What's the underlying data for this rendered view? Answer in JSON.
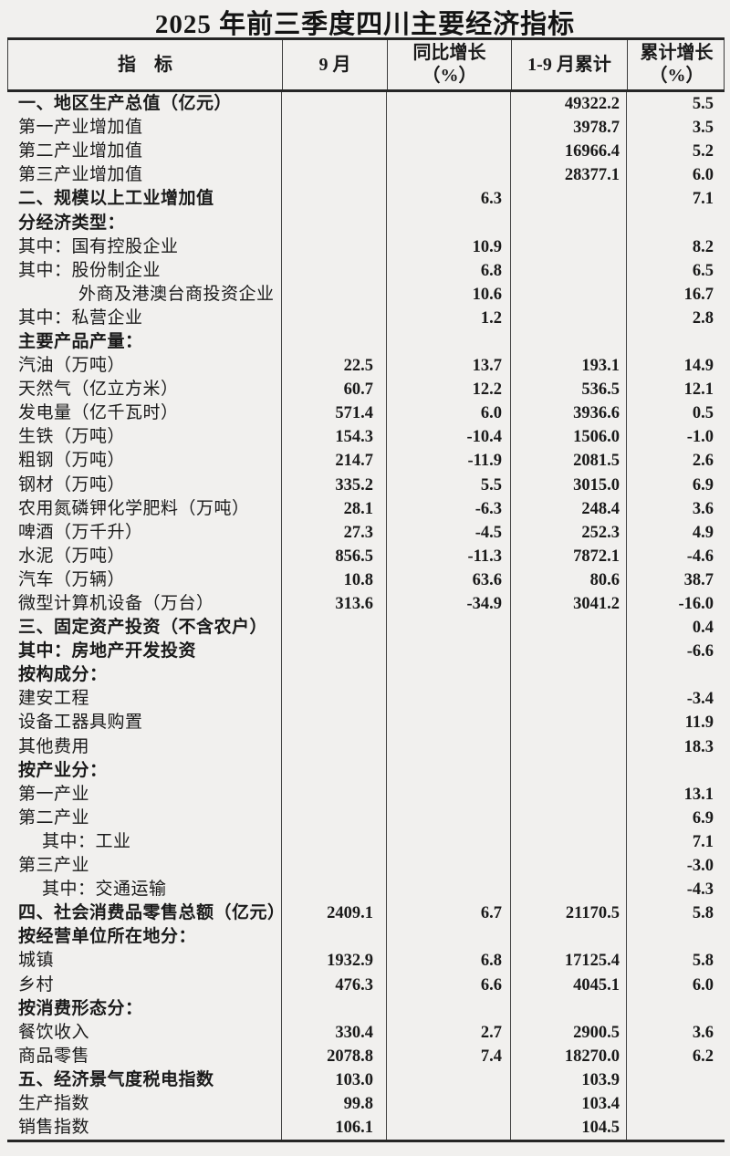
{
  "title": "2025 年前三季度四川主要经济指标",
  "colors": {
    "background": "#f1f0ee",
    "text": "#1a1a1a",
    "border": "#2b2b2b"
  },
  "table": {
    "headers": [
      {
        "line1": "指　标",
        "line2": ""
      },
      {
        "line1": "9 月",
        "line2": ""
      },
      {
        "line1": "同比增长",
        "line2": "（%）"
      },
      {
        "line1": "1-9 月累计",
        "line2": ""
      },
      {
        "line1": "累计增长",
        "line2": "（%）"
      }
    ],
    "rows": [
      {
        "label": "一、地区生产总值（亿元）",
        "bold": true,
        "indent": 0,
        "m9": "",
        "yoy": "",
        "cum": "49322.2",
        "cumGrowth": "5.5"
      },
      {
        "label": "第一产业增加值",
        "bold": false,
        "indent": 0,
        "m9": "",
        "yoy": "",
        "cum": "3978.7",
        "cumGrowth": "3.5"
      },
      {
        "label": "第二产业增加值",
        "bold": false,
        "indent": 0,
        "m9": "",
        "yoy": "",
        "cum": "16966.4",
        "cumGrowth": "5.2"
      },
      {
        "label": "第三产业增加值",
        "bold": false,
        "indent": 0,
        "m9": "",
        "yoy": "",
        "cum": "28377.1",
        "cumGrowth": "6.0"
      },
      {
        "label": "二、规模以上工业增加值",
        "bold": true,
        "indent": 0,
        "m9": "",
        "yoy": "6.3",
        "cum": "",
        "cumGrowth": "7.1"
      },
      {
        "label": "分经济类型：",
        "bold": true,
        "indent": 0,
        "m9": "",
        "yoy": "",
        "cum": "",
        "cumGrowth": ""
      },
      {
        "label": "其中：国有控股企业",
        "bold": false,
        "indent": 0,
        "m9": "",
        "yoy": "10.9",
        "cum": "",
        "cumGrowth": "8.2"
      },
      {
        "label": "其中：股份制企业",
        "bold": false,
        "indent": 0,
        "m9": "",
        "yoy": "6.8",
        "cum": "",
        "cumGrowth": "6.5"
      },
      {
        "label": "外商及港澳台商投资企业",
        "bold": false,
        "indent": 2,
        "m9": "",
        "yoy": "10.6",
        "cum": "",
        "cumGrowth": "16.7"
      },
      {
        "label": "其中：私营企业",
        "bold": false,
        "indent": 0,
        "m9": "",
        "yoy": "1.2",
        "cum": "",
        "cumGrowth": "2.8"
      },
      {
        "label": "主要产品产量：",
        "bold": true,
        "indent": 0,
        "m9": "",
        "yoy": "",
        "cum": "",
        "cumGrowth": ""
      },
      {
        "label": "汽油（万吨）",
        "bold": false,
        "indent": 0,
        "m9": "22.5",
        "yoy": "13.7",
        "cum": "193.1",
        "cumGrowth": "14.9"
      },
      {
        "label": "天然气（亿立方米）",
        "bold": false,
        "indent": 0,
        "m9": "60.7",
        "yoy": "12.2",
        "cum": "536.5",
        "cumGrowth": "12.1"
      },
      {
        "label": "发电量（亿千瓦时）",
        "bold": false,
        "indent": 0,
        "m9": "571.4",
        "yoy": "6.0",
        "cum": "3936.6",
        "cumGrowth": "0.5"
      },
      {
        "label": "生铁（万吨）",
        "bold": false,
        "indent": 0,
        "m9": "154.3",
        "yoy": "-10.4",
        "cum": "1506.0",
        "cumGrowth": "-1.0"
      },
      {
        "label": "粗钢（万吨）",
        "bold": false,
        "indent": 0,
        "m9": "214.7",
        "yoy": "-11.9",
        "cum": "2081.5",
        "cumGrowth": "2.6"
      },
      {
        "label": "钢材（万吨）",
        "bold": false,
        "indent": 0,
        "m9": "335.2",
        "yoy": "5.5",
        "cum": "3015.0",
        "cumGrowth": "6.9"
      },
      {
        "label": "农用氮磷钾化学肥料（万吨）",
        "bold": false,
        "indent": 0,
        "m9": "28.1",
        "yoy": "-6.3",
        "cum": "248.4",
        "cumGrowth": "3.6"
      },
      {
        "label": "啤酒（万千升）",
        "bold": false,
        "indent": 0,
        "m9": "27.3",
        "yoy": "-4.5",
        "cum": "252.3",
        "cumGrowth": "4.9"
      },
      {
        "label": "水泥（万吨）",
        "bold": false,
        "indent": 0,
        "m9": "856.5",
        "yoy": "-11.3",
        "cum": "7872.1",
        "cumGrowth": "-4.6"
      },
      {
        "label": "汽车（万辆）",
        "bold": false,
        "indent": 0,
        "m9": "10.8",
        "yoy": "63.6",
        "cum": "80.6",
        "cumGrowth": "38.7"
      },
      {
        "label": "微型计算机设备（万台）",
        "bold": false,
        "indent": 0,
        "m9": "313.6",
        "yoy": "-34.9",
        "cum": "3041.2",
        "cumGrowth": "-16.0"
      },
      {
        "label": "三、固定资产投资（不含农户）",
        "bold": true,
        "indent": 0,
        "m9": "",
        "yoy": "",
        "cum": "",
        "cumGrowth": "0.4"
      },
      {
        "label": "其中：房地产开发投资",
        "bold": true,
        "indent": 0,
        "m9": "",
        "yoy": "",
        "cum": "",
        "cumGrowth": "-6.6"
      },
      {
        "label": "按构成分：",
        "bold": true,
        "indent": 0,
        "m9": "",
        "yoy": "",
        "cum": "",
        "cumGrowth": ""
      },
      {
        "label": "建安工程",
        "bold": false,
        "indent": 0,
        "m9": "",
        "yoy": "",
        "cum": "",
        "cumGrowth": "-3.4"
      },
      {
        "label": "设备工器具购置",
        "bold": false,
        "indent": 0,
        "m9": "",
        "yoy": "",
        "cum": "",
        "cumGrowth": "11.9"
      },
      {
        "label": "其他费用",
        "bold": false,
        "indent": 0,
        "m9": "",
        "yoy": "",
        "cum": "",
        "cumGrowth": "18.3"
      },
      {
        "label": "按产业分：",
        "bold": true,
        "indent": 0,
        "m9": "",
        "yoy": "",
        "cum": "",
        "cumGrowth": ""
      },
      {
        "label": "第一产业",
        "bold": false,
        "indent": 0,
        "m9": "",
        "yoy": "",
        "cum": "",
        "cumGrowth": "13.1"
      },
      {
        "label": "第二产业",
        "bold": false,
        "indent": 0,
        "m9": "",
        "yoy": "",
        "cum": "",
        "cumGrowth": "6.9"
      },
      {
        "label": "其中：工业",
        "bold": false,
        "indent": 1,
        "m9": "",
        "yoy": "",
        "cum": "",
        "cumGrowth": "7.1"
      },
      {
        "label": "第三产业",
        "bold": false,
        "indent": 0,
        "m9": "",
        "yoy": "",
        "cum": "",
        "cumGrowth": "-3.0"
      },
      {
        "label": "其中：交通运输",
        "bold": false,
        "indent": 1,
        "m9": "",
        "yoy": "",
        "cum": "",
        "cumGrowth": "-4.3"
      },
      {
        "label": "四、社会消费品零售总额（亿元）",
        "bold": true,
        "indent": 0,
        "m9": "2409.1",
        "yoy": "6.7",
        "cum": "21170.5",
        "cumGrowth": "5.8"
      },
      {
        "label": "按经营单位所在地分：",
        "bold": true,
        "indent": 0,
        "m9": "",
        "yoy": "",
        "cum": "",
        "cumGrowth": ""
      },
      {
        "label": "城镇",
        "bold": false,
        "indent": 0,
        "m9": "1932.9",
        "yoy": "6.8",
        "cum": "17125.4",
        "cumGrowth": "5.8"
      },
      {
        "label": "乡村",
        "bold": false,
        "indent": 0,
        "m9": "476.3",
        "yoy": "6.6",
        "cum": "4045.1",
        "cumGrowth": "6.0"
      },
      {
        "label": "按消费形态分：",
        "bold": true,
        "indent": 0,
        "m9": "",
        "yoy": "",
        "cum": "",
        "cumGrowth": ""
      },
      {
        "label": "餐饮收入",
        "bold": false,
        "indent": 0,
        "m9": "330.4",
        "yoy": "2.7",
        "cum": "2900.5",
        "cumGrowth": "3.6"
      },
      {
        "label": "商品零售",
        "bold": false,
        "indent": 0,
        "m9": "2078.8",
        "yoy": "7.4",
        "cum": "18270.0",
        "cumGrowth": "6.2"
      },
      {
        "label": "五、经济景气度税电指数",
        "bold": true,
        "indent": 0,
        "m9": "103.0",
        "yoy": "",
        "cum": "103.9",
        "cumGrowth": ""
      },
      {
        "label": "生产指数",
        "bold": false,
        "indent": 0,
        "m9": "99.8",
        "yoy": "",
        "cum": "103.4",
        "cumGrowth": ""
      },
      {
        "label": "销售指数",
        "bold": false,
        "indent": 0,
        "m9": "106.1",
        "yoy": "",
        "cum": "104.5",
        "cumGrowth": ""
      }
    ]
  }
}
